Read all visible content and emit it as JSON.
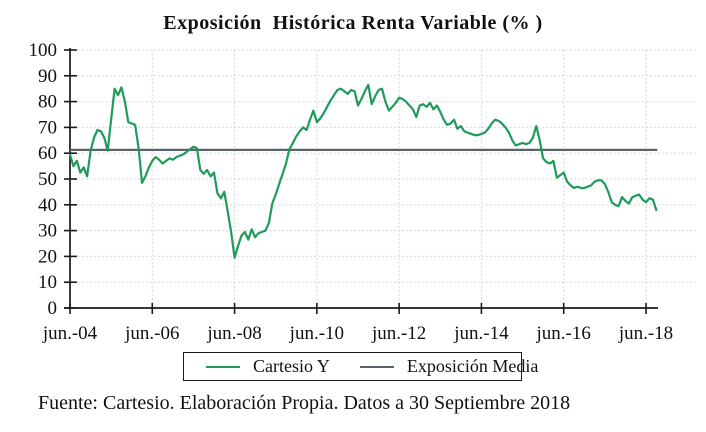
{
  "title": "Exposición  Histórica Renta Variable (% )",
  "footer": "Fuente: Cartesio. Elaboración Propia. Datos a 30 Septiembre 2018",
  "legend": {
    "items": [
      {
        "label": "Cartesio Y",
        "color": "#1e9b5a"
      },
      {
        "label": "Exposición Media",
        "color": "#58626c"
      }
    ]
  },
  "colors": {
    "series_green": "#1e9b5a",
    "mean_line": "#58626c",
    "gridline": "#c9cdc9",
    "axis": "#1a1a1a",
    "background": "#ffffff"
  },
  "chart_data": {
    "type": "line",
    "title": "Exposición  Histórica Renta Variable (% )",
    "xlabel": "",
    "ylabel": "",
    "ylim": [
      0,
      100
    ],
    "y_ticks": [
      0,
      10,
      20,
      30,
      40,
      50,
      60,
      70,
      80,
      90,
      100
    ],
    "x_tick_labels": [
      "jun.-04",
      "jun.-06",
      "jun.-08",
      "jun.-10",
      "jun.-12",
      "jun.-14",
      "jun.-16",
      "jun.-18"
    ],
    "x_tick_interval_months": 24,
    "grid": "dotted",
    "legend_position": "bottom",
    "series": [
      {
        "name": "Cartesio Y",
        "color": "#1e9b5a",
        "start_month": "jun-2004",
        "end_month": "sep-2018",
        "frequency": "monthly",
        "monthly_values": [
          59.5,
          55,
          57,
          52.5,
          54.5,
          51,
          61,
          66,
          69,
          68.5,
          66,
          61,
          73,
          85,
          82.5,
          85.5,
          80,
          72,
          71.5,
          71,
          62,
          48.5,
          51,
          54.5,
          57,
          58.5,
          57.5,
          56,
          57,
          58,
          57.5,
          58.5,
          59,
          59.5,
          60.5,
          61.5,
          62.5,
          62,
          53.5,
          52,
          53.5,
          51,
          52.5,
          44.5,
          42.5,
          45,
          37.5,
          29.5,
          19.5,
          24,
          28,
          29.5,
          26.5,
          30.5,
          27.5,
          29,
          29.5,
          30,
          33,
          40.5,
          44,
          48,
          52,
          56,
          61.5,
          64,
          66.5,
          68.5,
          70,
          69,
          73,
          76.5,
          72,
          73.5,
          75.5,
          78,
          80.5,
          82.5,
          84.5,
          85,
          84,
          83,
          84.5,
          84,
          78.5,
          81,
          84,
          86.5,
          79,
          82,
          84.5,
          85,
          80,
          76.5,
          78,
          79.5,
          81.5,
          81,
          80,
          78.5,
          77,
          74,
          78.5,
          79,
          78,
          79.5,
          77,
          78.5,
          76,
          73,
          71,
          71.5,
          73,
          69.5,
          70.5,
          68.5,
          68,
          67.5,
          67,
          67,
          67.5,
          68,
          69.5,
          71.5,
          73,
          72.5,
          71.5,
          70,
          68,
          65,
          63,
          63.5,
          64,
          63.5,
          64,
          66,
          70.5,
          65,
          58,
          56.5,
          56,
          57,
          50.5,
          51.5,
          52.5,
          49,
          47.5,
          46.5,
          47,
          46.5,
          46.5,
          47,
          47.5,
          49,
          49.5,
          49.5,
          48,
          45,
          41,
          40,
          39.5,
          43,
          41.5,
          40.5,
          43,
          43.5,
          44,
          42,
          41,
          42.5,
          42,
          38
        ]
      },
      {
        "name": "Exposición Media",
        "color": "#58626c",
        "type": "horizontal-reference-line",
        "value": 61.3
      }
    ]
  }
}
